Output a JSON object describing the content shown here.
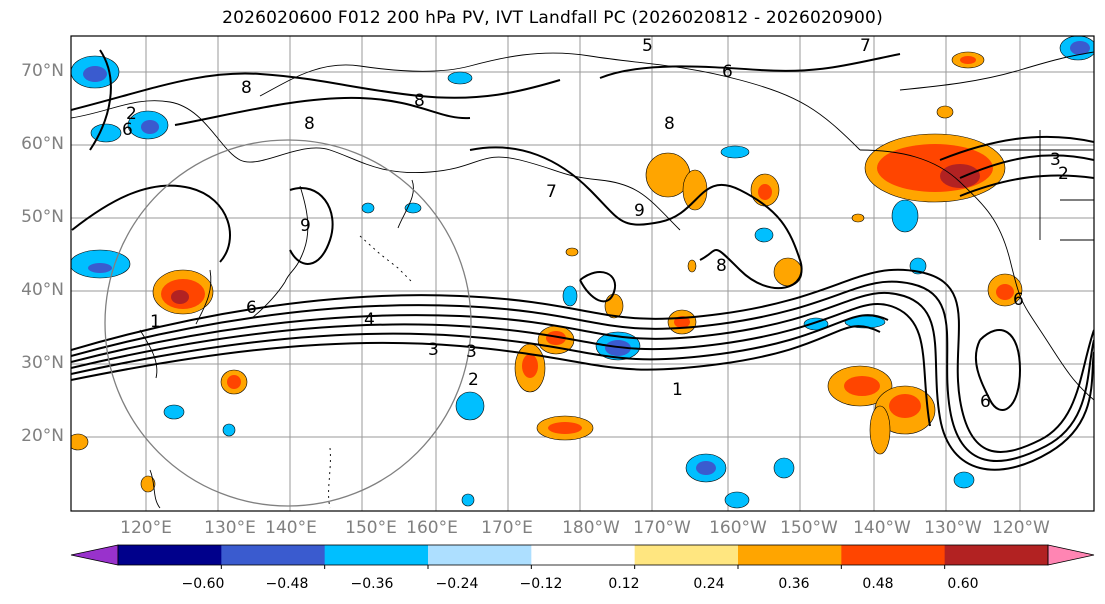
{
  "title": "2026020600 F012 200 hPa PV, IVT Landfall PC (2026020812 - 2026020900)",
  "lat_labels": [
    "70°N",
    "60°N",
    "50°N",
    "40°N",
    "30°N",
    "20°N"
  ],
  "lon_labels": [
    "120°E",
    "130°E",
    "140°E",
    "150°E",
    "160°E",
    "170°E",
    "180°W",
    "170°W",
    "160°W",
    "150°W",
    "140°W",
    "130°W",
    "120°W"
  ],
  "contour_labels": [
    "5",
    "7",
    "6",
    "8",
    "8",
    "8",
    "8",
    "6",
    "2",
    "3",
    "2",
    "7",
    "9",
    "9",
    "8",
    "6",
    "4",
    "3",
    "3",
    "2",
    "1",
    "6",
    "6",
    "1"
  ],
  "colorbar": {
    "tick_labels": [
      "−0.60",
      "−0.48",
      "−0.36",
      "−0.24",
      "−0.12",
      "0.12",
      "0.24",
      "0.36",
      "0.48",
      "0.60"
    ],
    "colors": [
      "#9932CC",
      "#00008B",
      "#3A5BCF",
      "#00BFFF",
      "#ADDFFF",
      "#FFFFFF",
      "#FFE680",
      "#FFA500",
      "#FF4500",
      "#B22222",
      "#FF85B3"
    ]
  }
}
